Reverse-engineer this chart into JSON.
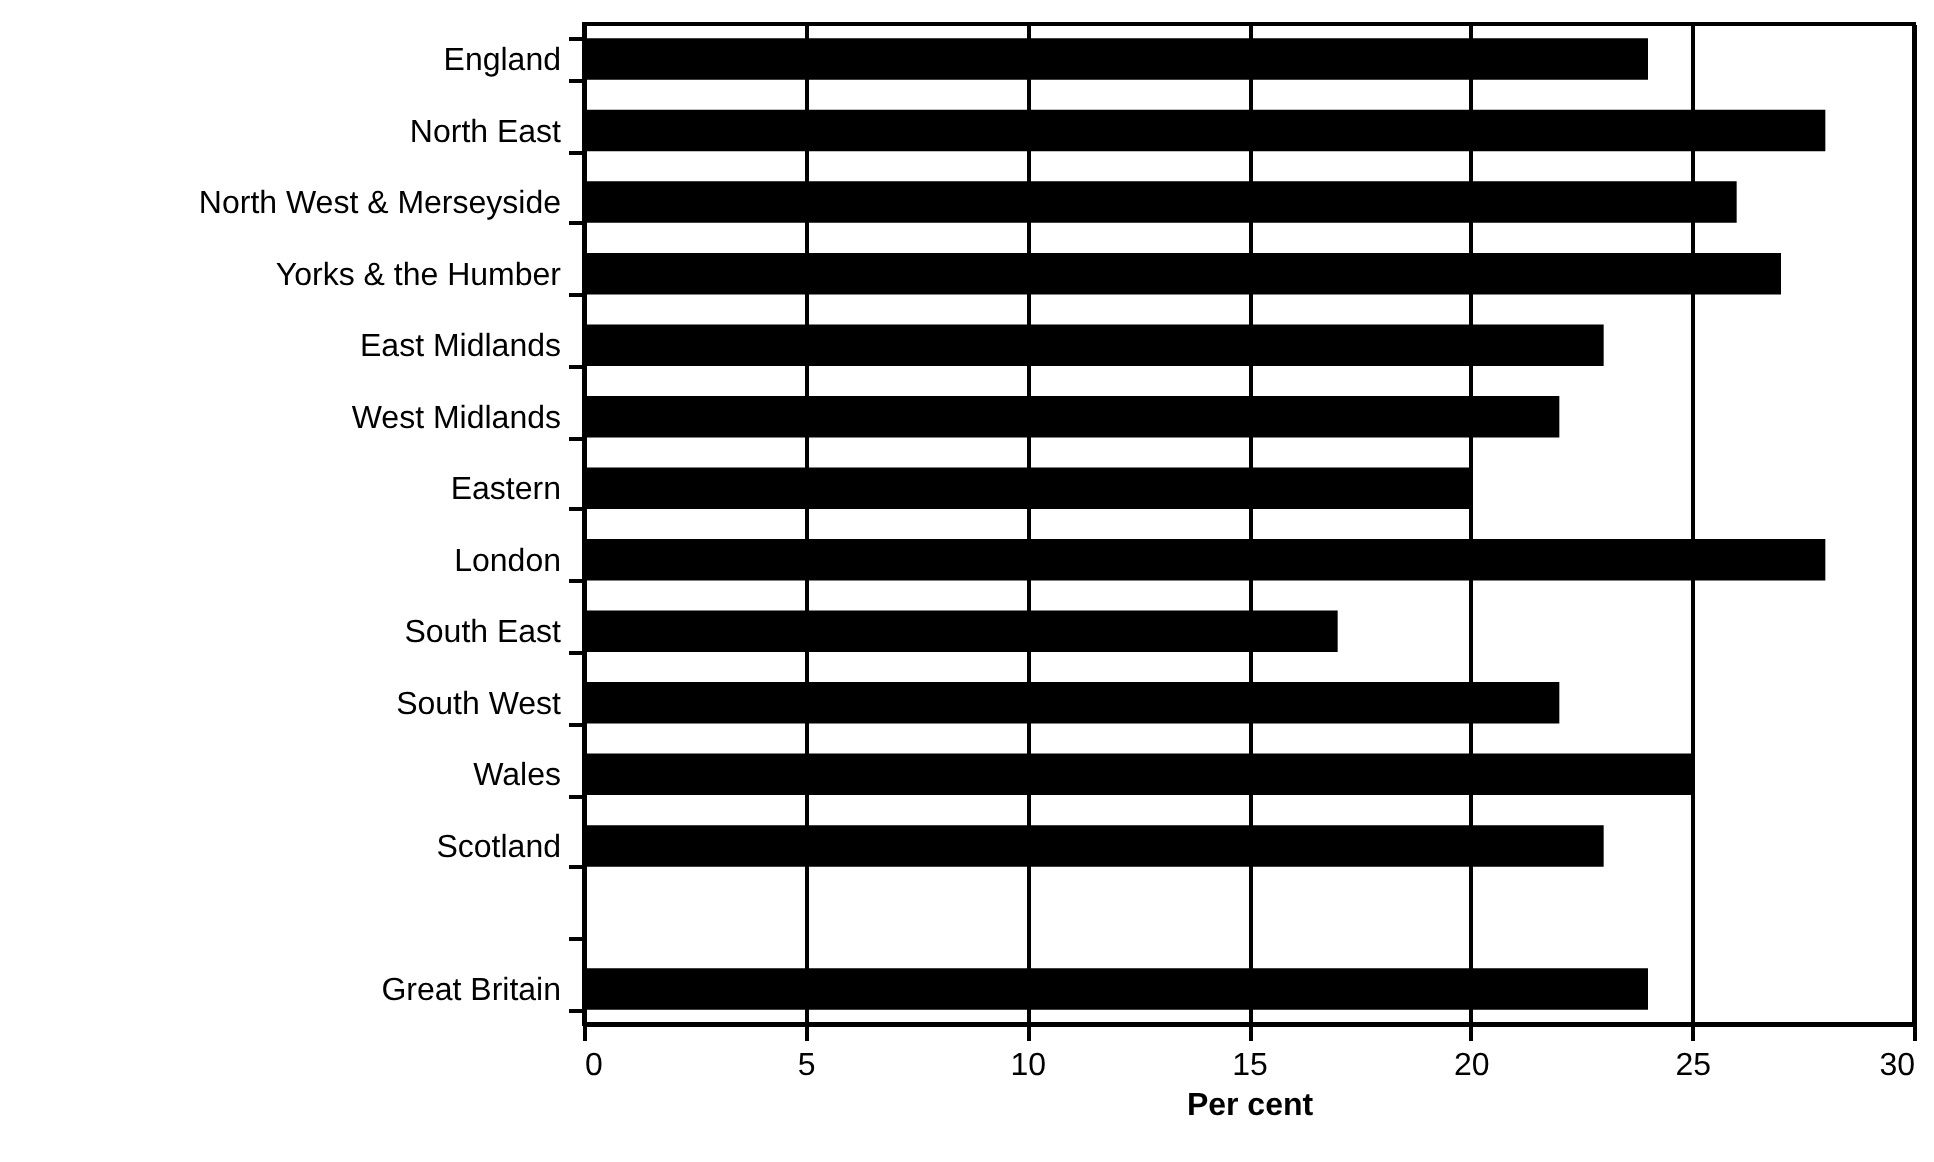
{
  "chart_data": {
    "type": "bar",
    "orientation": "horizontal",
    "xlabel": "Per cent",
    "categories": [
      "England",
      "North East",
      "North West & Merseyside",
      "Yorks & the Humber",
      "East Midlands",
      "West Midlands",
      "Eastern",
      "London",
      "South East",
      "South West",
      "Wales",
      "Scotland",
      null,
      "Great Britain"
    ],
    "values": [
      24,
      28,
      26,
      27,
      23,
      22,
      20,
      28,
      17,
      22,
      25,
      23,
      null,
      24
    ],
    "color": "#000000",
    "xlim": [
      0,
      30
    ],
    "xticks": [
      0,
      5,
      10,
      15,
      20,
      25,
      30
    ],
    "grid": "x"
  }
}
